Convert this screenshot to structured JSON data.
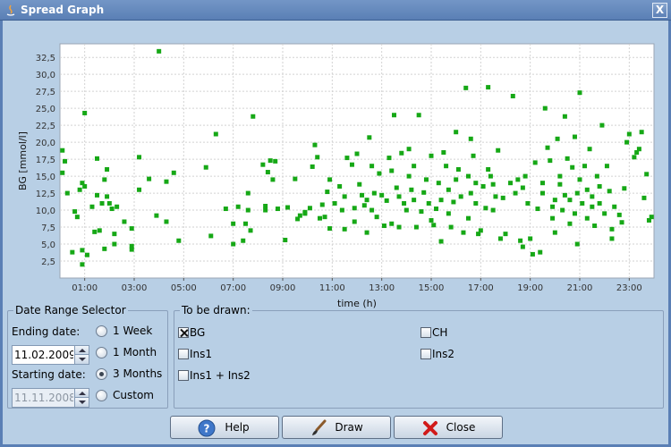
{
  "window": {
    "title": "Spread Graph",
    "close_glyph": "X"
  },
  "chart_data": {
    "type": "scatter",
    "xlabel": "time (h)",
    "ylabel": "BG  [mmol/l]",
    "xlim": [
      0.0,
      24.0
    ],
    "ylim": [
      0.0,
      34.5
    ],
    "xticks": [
      "01:00",
      "03:00",
      "05:00",
      "07:00",
      "09:00",
      "11:00",
      "13:00",
      "15:00",
      "17:00",
      "19:00",
      "21:00",
      "23:00"
    ],
    "xtick_values": [
      1,
      3,
      5,
      7,
      9,
      11,
      13,
      15,
      17,
      19,
      21,
      23
    ],
    "yticks": [
      "2,5",
      "5,0",
      "7,5",
      "10,0",
      "12,5",
      "15,0",
      "17,5",
      "20,0",
      "22,5",
      "25,0",
      "27,5",
      "30,0",
      "32,5"
    ],
    "ytick_values": [
      2.5,
      5,
      7.5,
      10,
      12.5,
      15,
      17.5,
      20,
      22.5,
      25,
      27.5,
      30,
      32.5
    ],
    "grid": true,
    "color": "#16a816",
    "series": [
      {
        "x": [],
        "y": []
      }
    ]
  },
  "date_range": {
    "legend": "Date Range Selector",
    "ending_label": "Ending date:",
    "ending_value": "11.02.2009",
    "starting_label": "Starting date:",
    "starting_value": "11.11.2008",
    "options": [
      {
        "label": "1 Week",
        "selected": false
      },
      {
        "label": "1 Month",
        "selected": false
      },
      {
        "label": "3 Months",
        "selected": true
      },
      {
        "label": "Custom",
        "selected": false
      }
    ]
  },
  "to_be_drawn": {
    "legend": "To be drawn:",
    "items": [
      {
        "label": "BG",
        "checked": true
      },
      {
        "label": "CH",
        "checked": false
      },
      {
        "label": "Ins1",
        "checked": false
      },
      {
        "label": "Ins2",
        "checked": false
      },
      {
        "label": "Ins1 + Ins2",
        "checked": false
      }
    ]
  },
  "buttons": {
    "help": "Help",
    "draw": "Draw",
    "close": "Close"
  },
  "colors": {
    "accent": "#5a7fb5",
    "panel": "#b8cfe5",
    "points": "#16a816"
  }
}
